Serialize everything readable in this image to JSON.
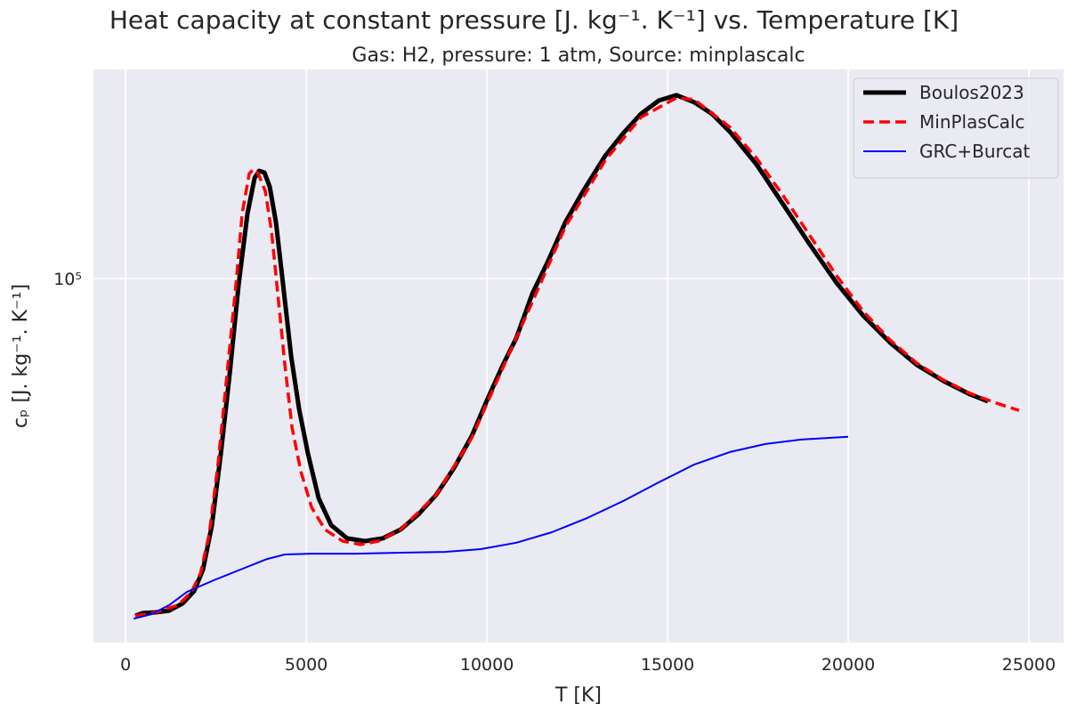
{
  "chart_data": {
    "type": "line",
    "title": "Heat capacity at constant pressure [J. kg⁻¹. K⁻¹] vs. Temperature [K]",
    "subtitle": "Gas: H2, pressure: 1 atm, Source: minplascalc",
    "xlabel": "T [K]",
    "ylabel": "cₚ [J. kg⁻¹. K⁻¹]",
    "xlim": [
      -890,
      25960
    ],
    "ylim": [
      12280,
      333600
    ],
    "yscale": "log",
    "grid": true,
    "legend_position": "top-right",
    "x_ticks": [
      0,
      5000,
      10000,
      15000,
      20000,
      25000
    ],
    "x_tick_labels": [
      "0",
      "5000",
      "10000",
      "15000",
      "20000",
      "25000"
    ],
    "y_ticks": [
      100000
    ],
    "y_tick_labels": [
      "10⁵"
    ],
    "series": [
      {
        "name": "Boulos2023",
        "color": "#000000",
        "style": "solid",
        "x": [
          271,
          468,
          837,
          1207,
          1576,
          1897,
          2143,
          2389,
          2635,
          2882,
          3128,
          3374,
          3571,
          3695,
          3842,
          3990,
          4163,
          4360,
          4581,
          4803,
          5049,
          5345,
          5690,
          6133,
          6626,
          7118,
          7611,
          8103,
          8596,
          9089,
          9581,
          10000,
          10443,
          10813,
          11256,
          11675,
          12167,
          12660,
          13276,
          13768,
          14261,
          14754,
          15246,
          15739,
          16232,
          16724,
          17463,
          18202,
          18941,
          19680,
          20419,
          21158,
          21897,
          22635,
          23374,
          23867
        ],
        "y": [
          14320,
          14550,
          14620,
          14760,
          15380,
          16520,
          18700,
          24150,
          36400,
          57800,
          96500,
          145500,
          178600,
          185900,
          184100,
          169600,
          138100,
          96500,
          64000,
          47100,
          36400,
          28200,
          24150,
          22390,
          22030,
          22390,
          23550,
          25700,
          28770,
          33570,
          40360,
          49550,
          60800,
          70960,
          91640,
          109700,
          138100,
          165300,
          202900,
          230700,
          258200,
          278800,
          287600,
          276100,
          258200,
          232900,
          192800,
          153100,
          121500,
          97470,
          80640,
          69150,
          60800,
          55450,
          51320,
          49300
        ]
      },
      {
        "name": "MinPlasCalc",
        "color": "#ff0000",
        "style": "dashed",
        "x": [
          271,
          837,
          1453,
          1823,
          2069,
          2315,
          2562,
          2808,
          3054,
          3227,
          3424,
          3547,
          3670,
          3867,
          4039,
          4212,
          4409,
          4606,
          4852,
          5148,
          5517,
          6010,
          6502,
          6995,
          7611,
          8596,
          9581,
          10443,
          11305,
          12167,
          13276,
          14261,
          15246,
          15739,
          16724,
          17463,
          18202,
          18941,
          19680,
          20419,
          21158,
          21897,
          22635,
          23374,
          24113,
          24729
        ],
        "y": [
          14320,
          14620,
          15240,
          16440,
          18230,
          22970,
          34590,
          57800,
          96500,
          145500,
          183200,
          187900,
          183200,
          165300,
          131200,
          91640,
          60800,
          42460,
          32880,
          26770,
          23550,
          22030,
          21590,
          22030,
          23550,
          28770,
          39930,
          59870,
          89330,
          134600,
          197700,
          253000,
          283300,
          280400,
          239200,
          199900,
          161100,
          127900,
          101600,
          82720,
          70150,
          61420,
          55740,
          51600,
          48760,
          46800
        ]
      },
      {
        "name": "GRC+Burcat",
        "color": "#0000ff",
        "style": "solid",
        "x": [
          222,
          714,
          1207,
          1700,
          2438,
          3177,
          3916,
          4409,
          5148,
          6379,
          7611,
          8842,
          9828,
          10813,
          11798,
          12783,
          13768,
          14754,
          15739,
          16724,
          17709,
          18695,
          20000
        ],
        "y": [
          14090,
          14460,
          15240,
          16440,
          17580,
          18700,
          19870,
          20400,
          20500,
          20500,
          20610,
          20710,
          21040,
          21830,
          23190,
          25180,
          27750,
          30900,
          34260,
          36810,
          38550,
          39540,
          40180
        ]
      }
    ]
  }
}
